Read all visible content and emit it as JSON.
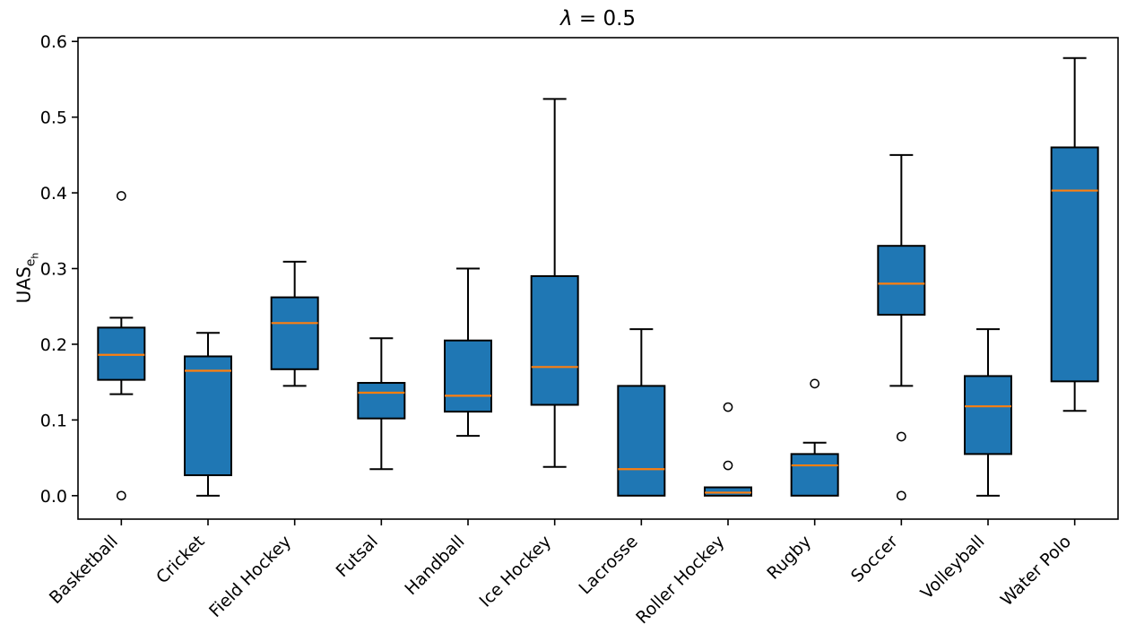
{
  "figure": {
    "title": {
      "lambda": "λ",
      "rest": " = 0.5"
    },
    "ylabel": {
      "main": "UAS",
      "sub": "e",
      "subsub": "h"
    }
  },
  "chart_data": {
    "type": "boxplot",
    "title": "λ = 0.5",
    "xlabel": "",
    "ylabel": "UAS_{e_h}",
    "ylim": [
      -0.031,
      0.605
    ],
    "grid": false,
    "legend": "none",
    "y_ticks": [
      0.0,
      0.1,
      0.2,
      0.3,
      0.4,
      0.5,
      0.6
    ],
    "y_tick_labels": [
      "0.0",
      "0.1",
      "0.2",
      "0.3",
      "0.4",
      "0.5",
      "0.6"
    ],
    "categories": [
      "Basketball",
      "Cricket",
      "Field Hockey",
      "Futsal",
      "Handball",
      "Ice Hockey",
      "Lacrosse",
      "Roller Hockey",
      "Rugby",
      "Soccer",
      "Volleyball",
      "Water Polo"
    ],
    "series": [
      {
        "name": "Basketball",
        "whisker_low": 0.134,
        "q1": 0.153,
        "median": 0.186,
        "q3": 0.222,
        "whisker_high": 0.235,
        "outliers": [
          0.0,
          0.396
        ]
      },
      {
        "name": "Cricket",
        "whisker_low": 0.0,
        "q1": 0.027,
        "median": 0.165,
        "q3": 0.184,
        "whisker_high": 0.215,
        "outliers": []
      },
      {
        "name": "Field Hockey",
        "whisker_low": 0.145,
        "q1": 0.167,
        "median": 0.228,
        "q3": 0.262,
        "whisker_high": 0.309,
        "outliers": []
      },
      {
        "name": "Futsal",
        "whisker_low": 0.035,
        "q1": 0.102,
        "median": 0.136,
        "q3": 0.149,
        "whisker_high": 0.208,
        "outliers": []
      },
      {
        "name": "Handball",
        "whisker_low": 0.079,
        "q1": 0.111,
        "median": 0.132,
        "q3": 0.205,
        "whisker_high": 0.3,
        "outliers": []
      },
      {
        "name": "Ice Hockey",
        "whisker_low": 0.038,
        "q1": 0.12,
        "median": 0.17,
        "q3": 0.29,
        "whisker_high": 0.524,
        "outliers": []
      },
      {
        "name": "Lacrosse",
        "whisker_low": 0.0,
        "q1": 0.0,
        "median": 0.035,
        "q3": 0.145,
        "whisker_high": 0.22,
        "outliers": []
      },
      {
        "name": "Roller Hockey",
        "whisker_low": 0.0,
        "q1": 0.0,
        "median": 0.004,
        "q3": 0.011,
        "whisker_high": 0.011,
        "outliers": [
          0.04,
          0.117
        ]
      },
      {
        "name": "Rugby",
        "whisker_low": 0.0,
        "q1": 0.0,
        "median": 0.04,
        "q3": 0.055,
        "whisker_high": 0.07,
        "outliers": [
          0.148
        ]
      },
      {
        "name": "Soccer",
        "whisker_low": 0.145,
        "q1": 0.239,
        "median": 0.28,
        "q3": 0.33,
        "whisker_high": 0.45,
        "outliers": [
          0.0,
          0.078
        ]
      },
      {
        "name": "Volleyball",
        "whisker_low": 0.0,
        "q1": 0.055,
        "median": 0.118,
        "q3": 0.158,
        "whisker_high": 0.22,
        "outliers": []
      },
      {
        "name": "Water Polo",
        "whisker_low": 0.112,
        "q1": 0.151,
        "median": 0.403,
        "q3": 0.46,
        "whisker_high": 0.578,
        "outliers": []
      }
    ],
    "colors": {
      "box_fill": "#1f77b4",
      "box_edge": "#000000",
      "median": "#ff7f0e",
      "whisker": "#000000",
      "outlier_edge": "#000000",
      "background": "#ffffff"
    }
  }
}
